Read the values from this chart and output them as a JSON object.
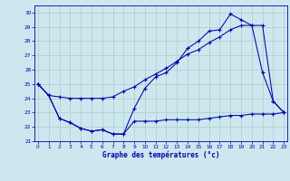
{
  "title": "Graphe des températures (°c)",
  "bg_color": "#cce8ee",
  "grid_color": "#aacccc",
  "line_color": "#0000aa",
  "xlim": [
    -0.3,
    23.3
  ],
  "ylim": [
    21.0,
    30.5
  ],
  "yticks": [
    21,
    22,
    23,
    24,
    25,
    26,
    27,
    28,
    29,
    30
  ],
  "xticks": [
    0,
    1,
    2,
    3,
    4,
    5,
    6,
    7,
    8,
    9,
    10,
    11,
    12,
    13,
    14,
    15,
    16,
    17,
    18,
    19,
    20,
    21,
    22,
    23
  ],
  "s1_x": [
    0,
    1,
    2,
    3,
    4,
    5,
    6,
    7,
    8,
    9,
    10,
    11,
    12,
    13,
    14,
    15,
    16,
    17,
    18,
    19,
    20,
    21,
    22,
    23
  ],
  "s1_y": [
    25.0,
    24.2,
    22.6,
    22.3,
    21.9,
    21.7,
    21.8,
    21.5,
    21.5,
    23.3,
    24.7,
    25.5,
    25.8,
    26.5,
    27.5,
    28.0,
    28.7,
    28.8,
    29.9,
    29.5,
    29.1,
    25.8,
    23.8,
    23.0
  ],
  "s2_x": [
    0,
    1,
    2,
    3,
    4,
    5,
    6,
    7,
    8,
    9,
    10,
    11,
    12,
    13,
    14,
    15,
    16,
    17,
    18,
    19,
    20,
    21,
    22,
    23
  ],
  "s2_y": [
    25.0,
    24.2,
    24.1,
    24.0,
    24.0,
    24.0,
    24.0,
    24.1,
    24.5,
    24.8,
    25.3,
    25.7,
    26.1,
    26.6,
    27.1,
    27.4,
    27.9,
    28.3,
    28.8,
    29.1,
    29.1,
    29.1,
    23.8,
    23.0
  ],
  "s3_x": [
    0,
    1,
    2,
    3,
    4,
    5,
    6,
    7,
    8,
    9,
    10,
    11,
    12,
    13,
    14,
    15,
    16,
    17,
    18,
    19,
    20,
    21,
    22,
    23
  ],
  "s3_y": [
    25.0,
    24.2,
    22.6,
    22.3,
    21.9,
    21.7,
    21.8,
    21.5,
    21.5,
    22.4,
    22.4,
    22.4,
    22.5,
    22.5,
    22.5,
    22.5,
    22.6,
    22.7,
    22.8,
    22.8,
    22.9,
    22.9,
    22.9,
    23.0
  ]
}
